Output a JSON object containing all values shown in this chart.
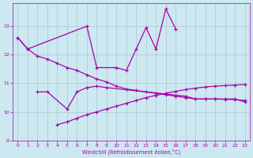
{
  "xlabel": "Windchill (Refroidissement éolien,°C)",
  "bg_color": "#cce8f0",
  "line_color": "#aa00aa",
  "grid_color": "#aabbcc",
  "x_all": [
    0,
    1,
    2,
    3,
    4,
    5,
    6,
    7,
    8,
    9,
    10,
    11,
    12,
    13,
    14,
    15,
    16,
    17,
    18,
    19,
    20,
    21,
    22,
    23
  ],
  "jagged_x": [
    0,
    1,
    7,
    8,
    10,
    11,
    12,
    13,
    14,
    15,
    16
  ],
  "jagged_y": [
    12.6,
    12.2,
    13.0,
    11.55,
    11.55,
    11.45,
    12.2,
    12.95,
    12.2,
    13.6,
    12.9
  ],
  "decline_x": [
    0,
    1,
    2,
    3,
    4,
    5,
    6,
    7,
    8,
    9,
    10,
    11,
    12,
    13,
    14,
    15,
    16,
    17,
    18,
    19,
    20,
    21,
    22,
    23
  ],
  "decline_y": [
    12.6,
    12.2,
    11.95,
    11.85,
    11.7,
    11.55,
    11.45,
    11.3,
    11.15,
    11.05,
    10.9,
    10.8,
    10.75,
    10.7,
    10.65,
    10.6,
    10.55,
    10.5,
    10.45,
    10.45,
    10.45,
    10.44,
    10.43,
    10.4
  ],
  "flat_x": [
    2,
    3,
    5,
    6,
    7,
    8,
    9,
    17,
    18,
    19,
    20,
    21,
    22,
    23
  ],
  "flat_y": [
    10.7,
    10.7,
    10.1,
    10.7,
    10.85,
    10.9,
    10.85,
    10.55,
    10.45,
    10.45,
    10.45,
    10.45,
    10.45,
    10.35
  ],
  "rise_x": [
    4,
    5,
    6,
    7,
    8,
    9,
    10,
    11,
    12,
    13,
    14,
    15,
    16,
    17,
    18,
    19,
    20,
    21,
    22,
    23
  ],
  "rise_y": [
    9.55,
    9.65,
    9.78,
    9.9,
    10.0,
    10.1,
    10.2,
    10.3,
    10.4,
    10.5,
    10.58,
    10.65,
    10.72,
    10.78,
    10.83,
    10.87,
    10.9,
    10.92,
    10.94,
    10.96
  ],
  "ylim": [
    9.0,
    13.8
  ],
  "xlim": [
    -0.5,
    23.5
  ],
  "yticks": [
    9,
    10,
    11,
    12,
    13
  ],
  "xticks": [
    0,
    1,
    2,
    3,
    4,
    5,
    6,
    7,
    8,
    9,
    10,
    11,
    12,
    13,
    14,
    15,
    16,
    17,
    18,
    19,
    20,
    21,
    22,
    23
  ]
}
